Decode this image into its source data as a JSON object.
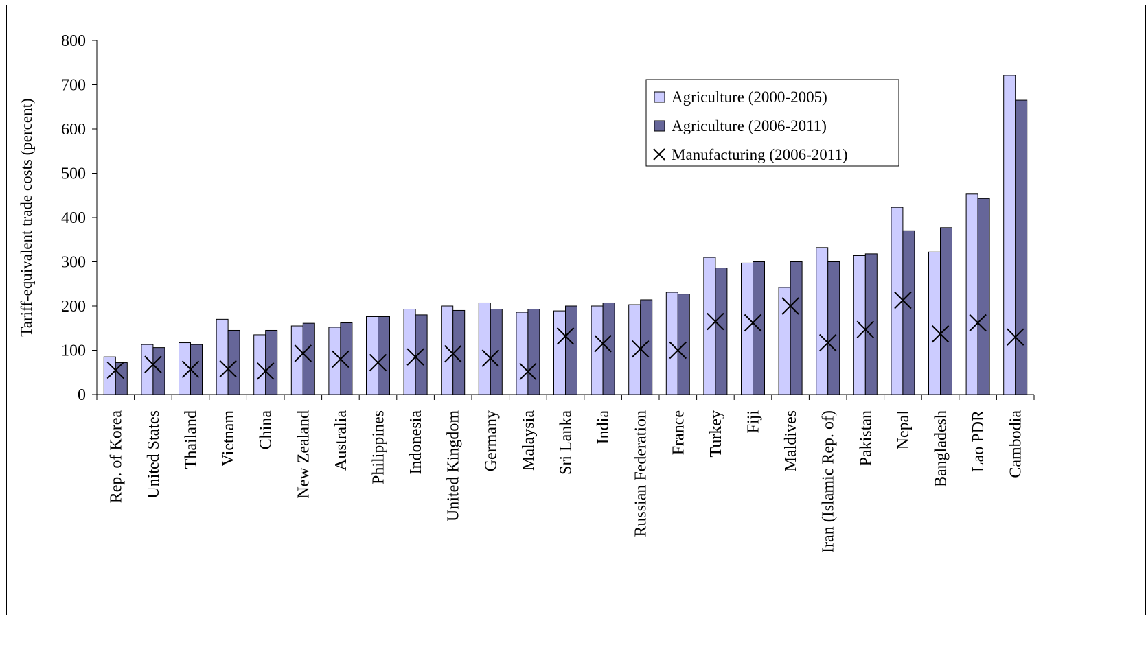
{
  "chart_data": {
    "type": "bar",
    "title": "",
    "xlabel": "",
    "ylabel": "Tariff-equivalent trade costs (percent)",
    "ylim": [
      0,
      800
    ],
    "yticks": [
      0,
      100,
      200,
      300,
      400,
      500,
      600,
      700,
      800
    ],
    "grid": false,
    "legend_position": "top-right",
    "categories": [
      "Rep. of Korea",
      "United States",
      "Thailand",
      "Vietnam",
      "China",
      "New Zealand",
      "Australia",
      "Philippines",
      "Indonesia",
      "United Kingdom",
      "Germany",
      "Malaysia",
      "Sri Lanka",
      "India",
      "Russian Federation",
      "France",
      "Turkey",
      "Fiji",
      "Maldives",
      "Iran (Islamic Rep. of)",
      "Pakistan",
      "Nepal",
      "Bangladesh",
      "Lao PDR",
      "Cambodia"
    ],
    "series": [
      {
        "name": "Agriculture (2000-2005)",
        "kind": "bar",
        "color": "#ccccff",
        "values": [
          85,
          113,
          117,
          170,
          135,
          155,
          152,
          176,
          193,
          200,
          207,
          186,
          189,
          200,
          203,
          231,
          310,
          297,
          242,
          332,
          314,
          423,
          322,
          453,
          721
        ]
      },
      {
        "name": "Agriculture (2006-2011)",
        "kind": "bar",
        "color": "#666699",
        "values": [
          72,
          106,
          113,
          145,
          145,
          161,
          162,
          176,
          180,
          190,
          193,
          193,
          200,
          207,
          214,
          227,
          286,
          300,
          300,
          300,
          318,
          370,
          377,
          443,
          665
        ]
      },
      {
        "name": "Manufacturing (2006-2011)",
        "kind": "marker",
        "marker": "x",
        "color": "#000000",
        "values": [
          55,
          68,
          57,
          58,
          53,
          93,
          80,
          72,
          85,
          92,
          82,
          52,
          132,
          115,
          103,
          100,
          165,
          162,
          200,
          117,
          147,
          213,
          137,
          162,
          130
        ]
      }
    ]
  }
}
